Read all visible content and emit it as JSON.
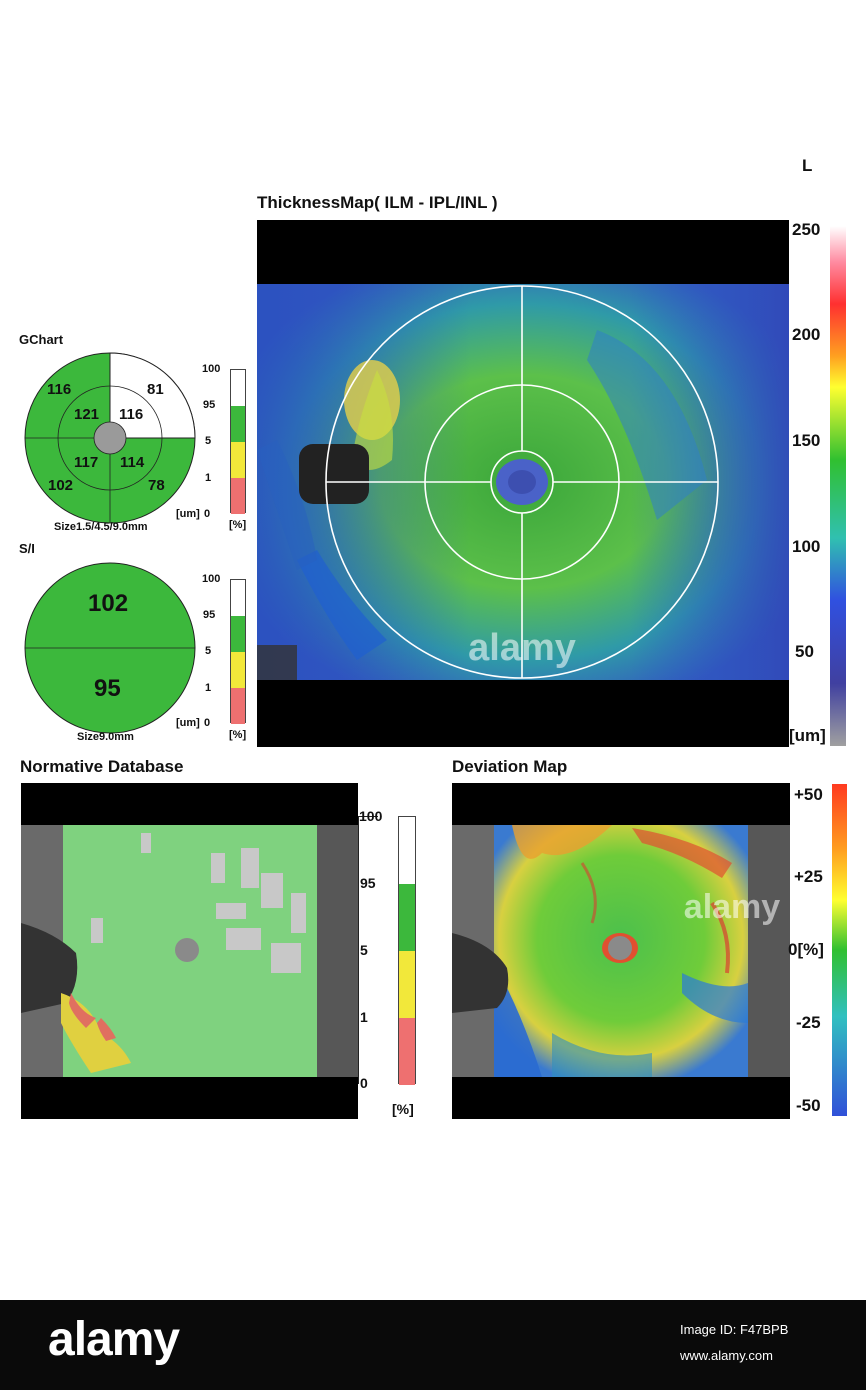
{
  "eye": "L",
  "thickness_map": {
    "title": "ThicknessMap( ILM - IPL/INL )",
    "scale_ticks": [
      "250",
      "200",
      "150",
      "100",
      "50",
      "[um]"
    ]
  },
  "gchart": {
    "title": "GChart",
    "values": {
      "outer_superotemporal": "116",
      "outer_superonasal": "81",
      "inner_superotemporal": "121",
      "inner_superonasal": "116",
      "inner_inferotemporal": "117",
      "inner_inferonasal": "114",
      "outer_inferotemporal": "102",
      "outer_inferonasal": "78"
    },
    "size": "Size1.5/4.5/9.0mm",
    "um_label": "[um]"
  },
  "si": {
    "title": "S/I",
    "superior": "102",
    "inferior": "95",
    "size": "Size9.0mm",
    "um_label": "[um]"
  },
  "percent_scale": {
    "ticks": [
      "100",
      "95",
      "5",
      "1",
      "0"
    ],
    "unit": "[%]"
  },
  "normative": {
    "title": "Normative Database",
    "ticks": [
      "100",
      "95",
      "5",
      "1",
      "0"
    ],
    "unit": "[%]"
  },
  "deviation": {
    "title": "Deviation Map",
    "ticks": [
      "+50",
      "+25",
      "0[%]",
      "-25",
      "-50"
    ]
  },
  "colors": {
    "normal_green": "#3cb83c",
    "borderline_yellow": "#f2e83a",
    "abnormal_red": "#ee7070",
    "white": "#ffffff"
  },
  "watermark": "alamy",
  "footer": {
    "brand": "alamy",
    "image_id_label": "Image ID: F47BPB",
    "site": "www.alamy.com"
  }
}
